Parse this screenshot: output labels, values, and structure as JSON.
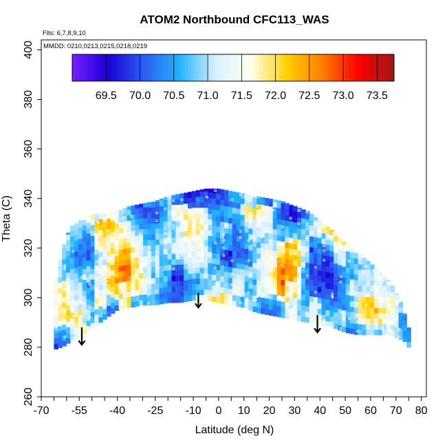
{
  "chart_data": {
    "type": "heatmap",
    "title": "ATOM2 Northbound CFC113_WAS",
    "subtitle_flights": "Flts: 6,7,8,9,10",
    "subtitle_dates": "MMDD: 0210,0213,0215,0218,0219",
    "xlabel": "Latitude (deg N)",
    "ylabel": "Theta (C)",
    "xlim": [
      -70,
      82
    ],
    "ylim": [
      260,
      404
    ],
    "x_tick_labels": [
      "-70",
      "-55",
      "-40",
      "-25",
      "-10",
      "0",
      "10",
      "20",
      "30",
      "40",
      "50",
      "60",
      "70",
      "80"
    ],
    "x_tick_values": [
      -70,
      -55,
      -40,
      -25,
      -10,
      0,
      10,
      20,
      30,
      40,
      50,
      60,
      70,
      80
    ],
    "x_minor_ticks": [
      -65,
      -60,
      -50,
      -45,
      -35,
      -30,
      -20,
      -15,
      -5,
      5,
      15,
      25,
      35,
      45,
      55,
      65,
      75
    ],
    "y_tick_labels": [
      "260",
      "280",
      "300",
      "320",
      "340",
      "360",
      "380",
      "400"
    ],
    "y_tick_values": [
      260,
      280,
      300,
      320,
      340,
      360,
      380,
      400
    ],
    "colorbar": {
      "tick_labels": [
        "69.5",
        "70.0",
        "70.5",
        "71.0",
        "71.5",
        "72.0",
        "72.5",
        "73.0",
        "73.5"
      ],
      "tick_values": [
        69.5,
        70.0,
        70.5,
        71.0,
        71.5,
        72.0,
        72.5,
        73.0,
        73.5
      ],
      "range": [
        69.0,
        73.75
      ],
      "colors": [
        "#7a1fff",
        "#1800d8",
        "#2d5df0",
        "#22b3ff",
        "#d9f0ff",
        "#fffff0",
        "#ffd000",
        "#ff7e00",
        "#ff0000",
        "#a01818"
      ]
    },
    "arrows_latitude": [
      -54,
      -8,
      39
    ],
    "arrows_theta": [
      [
        288,
        281
      ],
      [
        302,
        296
      ],
      [
        293,
        286
      ]
    ],
    "boundary": {
      "latitude": [
        -65,
        -62,
        -60,
        -58,
        -55,
        -52,
        -48,
        -44,
        -40,
        -35,
        -30,
        -25,
        -20,
        -15,
        -10,
        -5,
        0,
        5,
        10,
        15,
        20,
        25,
        30,
        35,
        40,
        45,
        50,
        55,
        60,
        65,
        68,
        70,
        72,
        74,
        75
      ],
      "theta_top": [
        304,
        318,
        325,
        329,
        331,
        333,
        334,
        334,
        335,
        337,
        338,
        339,
        341,
        342,
        343,
        344,
        344,
        343,
        342,
        341,
        340,
        339,
        337,
        335,
        331,
        327,
        322,
        318,
        314,
        309,
        306,
        302,
        298,
        292,
        288
      ],
      "theta_bottom": [
        279,
        280,
        281,
        283,
        284,
        286,
        289,
        292,
        295,
        296,
        297,
        297,
        298,
        298,
        299,
        299,
        298,
        297,
        296,
        294,
        293,
        292,
        291,
        290,
        289,
        288,
        286,
        285,
        285,
        285,
        285,
        284,
        283,
        282,
        280
      ]
    }
  }
}
